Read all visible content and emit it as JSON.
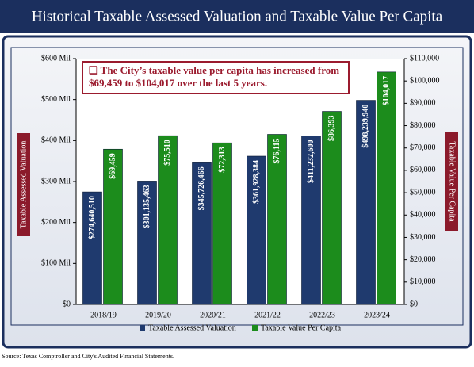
{
  "chart_data": {
    "type": "bar",
    "title": "Historical Taxable Assessed Valuation and Taxable Value Per Capita",
    "annotation": "❑ The City’s taxable value per capita has increased from $69,459 to $104,017 over the last 5 years.",
    "ylabel": "Taxable Assessed Valuation",
    "y2label": "Taxable Value Per Capita",
    "categories": [
      "2018/19",
      "2019/20",
      "2020/21",
      "2021/22",
      "2022/23",
      "2023/24"
    ],
    "series": [
      {
        "name": "Taxable Assessed Valuation",
        "color": "#1f3a6e",
        "values": [
          274640510,
          301135463,
          345726466,
          361928384,
          411232600,
          498239940
        ],
        "value_labels": [
          "$274,640,510",
          "$301,135,463",
          "$345,726,466",
          "$361,928,384",
          "$411,232,600",
          "$498,239,940"
        ]
      },
      {
        "name": "Taxable Value Per Capita",
        "color": "#1c8c1c",
        "axis": "y2",
        "values": [
          69459,
          75510,
          72313,
          76115,
          86393,
          104017
        ],
        "value_labels": [
          "$69,459",
          "$75,510",
          "$72,313",
          "$76,115",
          "$86,393",
          "$104,017"
        ]
      }
    ],
    "ylim": [
      0,
      600000000
    ],
    "yticks": [
      {
        "value": 0,
        "label": "$0"
      },
      {
        "value": 100000000,
        "label": "$100 Mil"
      },
      {
        "value": 200000000,
        "label": "$200 Mil"
      },
      {
        "value": 300000000,
        "label": "$300 Mil"
      },
      {
        "value": 400000000,
        "label": "$400 Mil"
      },
      {
        "value": 500000000,
        "label": "$500 Mil"
      },
      {
        "value": 600000000,
        "label": "$600 Mil"
      }
    ],
    "y2lim": [
      0,
      110000
    ],
    "y2ticks": [
      {
        "value": 0,
        "label": "$0"
      },
      {
        "value": 10000,
        "label": "$10,000"
      },
      {
        "value": 20000,
        "label": "$20,000"
      },
      {
        "value": 30000,
        "label": "$30,000"
      },
      {
        "value": 40000,
        "label": "$40,000"
      },
      {
        "value": 50000,
        "label": "$50,000"
      },
      {
        "value": 60000,
        "label": "$60,000"
      },
      {
        "value": 70000,
        "label": "$70,000"
      },
      {
        "value": 80000,
        "label": "$80,000"
      },
      {
        "value": 90000,
        "label": "$90,000"
      },
      {
        "value": 100000,
        "label": "$100,000"
      },
      {
        "value": 110000,
        "label": "$110,000"
      }
    ],
    "legend": "bottom"
  },
  "source": "Source: Texas Comptroller and City's Audited Financial Statements."
}
